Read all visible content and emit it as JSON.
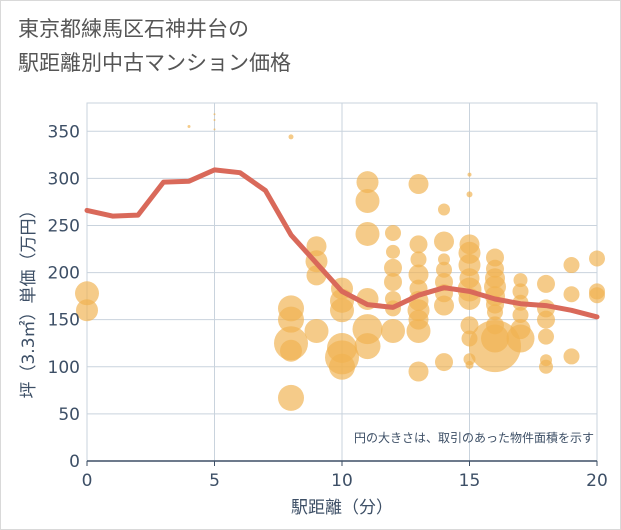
{
  "title": {
    "line1": "東京都練馬区石神井台の",
    "line2": "駅距離別中古マンション価格"
  },
  "colors": {
    "bubble": "#f0b251",
    "line": "#d9695a",
    "grid": "#c9d3dd",
    "axis": "#3d4f66"
  },
  "chart_data": {
    "type": "scatter",
    "xlabel": "駅距離（分）",
    "ylabel": "坪（3.3㎡）単価（万円）",
    "xlim": [
      0,
      20
    ],
    "ylim": [
      0,
      380
    ],
    "xticks": [
      0,
      5,
      10,
      15,
      20
    ],
    "yticks": [
      0,
      50,
      100,
      150,
      200,
      250,
      300,
      350
    ],
    "xtick_labels": [
      "0",
      "5",
      "10",
      "15",
      "20"
    ],
    "ytick_labels": [
      "0",
      "50",
      "100",
      "150",
      "200",
      "250",
      "300",
      "350"
    ],
    "grid": true,
    "annotation": "円の大きさは、取引のあった物件面積を示す",
    "series": [
      {
        "type": "bubble",
        "points": [
          {
            "x": 0,
            "y": 178,
            "s": 12
          },
          {
            "x": 0,
            "y": 160,
            "s": 11
          },
          {
            "x": 4,
            "y": 355,
            "s": 1.5
          },
          {
            "x": 5,
            "y": 368,
            "s": 1
          },
          {
            "x": 5,
            "y": 362,
            "s": 1
          },
          {
            "x": 5,
            "y": 352,
            "s": 1
          },
          {
            "x": 8,
            "y": 344,
            "s": 2.5
          },
          {
            "x": 8,
            "y": 162,
            "s": 13
          },
          {
            "x": 8,
            "y": 150,
            "s": 13
          },
          {
            "x": 8,
            "y": 125,
            "s": 17
          },
          {
            "x": 8,
            "y": 117,
            "s": 11
          },
          {
            "x": 8,
            "y": 67,
            "s": 13
          },
          {
            "x": 9,
            "y": 228,
            "s": 10
          },
          {
            "x": 9,
            "y": 212,
            "s": 11
          },
          {
            "x": 9,
            "y": 197,
            "s": 10
          },
          {
            "x": 9,
            "y": 138,
            "s": 12
          },
          {
            "x": 10,
            "y": 183,
            "s": 11
          },
          {
            "x": 10,
            "y": 170,
            "s": 12
          },
          {
            "x": 10,
            "y": 160,
            "s": 12
          },
          {
            "x": 10,
            "y": 120,
            "s": 15
          },
          {
            "x": 10,
            "y": 110,
            "s": 17
          },
          {
            "x": 10,
            "y": 100,
            "s": 13
          },
          {
            "x": 11,
            "y": 296,
            "s": 11
          },
          {
            "x": 11,
            "y": 276,
            "s": 12
          },
          {
            "x": 11,
            "y": 241,
            "s": 12
          },
          {
            "x": 11,
            "y": 172,
            "s": 11
          },
          {
            "x": 11,
            "y": 140,
            "s": 15
          },
          {
            "x": 11,
            "y": 122,
            "s": 13
          },
          {
            "x": 12,
            "y": 242,
            "s": 8
          },
          {
            "x": 12,
            "y": 222,
            "s": 7
          },
          {
            "x": 12,
            "y": 205,
            "s": 9
          },
          {
            "x": 12,
            "y": 190,
            "s": 9
          },
          {
            "x": 12,
            "y": 172,
            "s": 8
          },
          {
            "x": 12,
            "y": 162,
            "s": 8
          },
          {
            "x": 12,
            "y": 138,
            "s": 12
          },
          {
            "x": 13,
            "y": 294,
            "s": 10
          },
          {
            "x": 13,
            "y": 230,
            "s": 9
          },
          {
            "x": 13,
            "y": 214,
            "s": 8
          },
          {
            "x": 13,
            "y": 198,
            "s": 10
          },
          {
            "x": 13,
            "y": 183,
            "s": 9
          },
          {
            "x": 13,
            "y": 170,
            "s": 10
          },
          {
            "x": 13,
            "y": 160,
            "s": 11
          },
          {
            "x": 13,
            "y": 150,
            "s": 10
          },
          {
            "x": 13,
            "y": 138,
            "s": 12
          },
          {
            "x": 13,
            "y": 95,
            "s": 10
          },
          {
            "x": 14,
            "y": 267,
            "s": 6
          },
          {
            "x": 14,
            "y": 233,
            "s": 10
          },
          {
            "x": 14,
            "y": 214,
            "s": 6
          },
          {
            "x": 14,
            "y": 203,
            "s": 8
          },
          {
            "x": 14,
            "y": 190,
            "s": 9
          },
          {
            "x": 14,
            "y": 178,
            "s": 9
          },
          {
            "x": 14,
            "y": 165,
            "s": 10
          },
          {
            "x": 14,
            "y": 105,
            "s": 9
          },
          {
            "x": 15,
            "y": 304,
            "s": 2
          },
          {
            "x": 15,
            "y": 283,
            "s": 3
          },
          {
            "x": 15,
            "y": 230,
            "s": 10
          },
          {
            "x": 15,
            "y": 221,
            "s": 11
          },
          {
            "x": 15,
            "y": 208,
            "s": 11
          },
          {
            "x": 15,
            "y": 194,
            "s": 10
          },
          {
            "x": 15,
            "y": 182,
            "s": 12
          },
          {
            "x": 15,
            "y": 172,
            "s": 11
          },
          {
            "x": 15,
            "y": 144,
            "s": 9
          },
          {
            "x": 15,
            "y": 130,
            "s": 8
          },
          {
            "x": 15,
            "y": 108,
            "s": 6
          },
          {
            "x": 15,
            "y": 102,
            "s": 4
          },
          {
            "x": 16,
            "y": 216,
            "s": 9
          },
          {
            "x": 16,
            "y": 204,
            "s": 9
          },
          {
            "x": 16,
            "y": 194,
            "s": 10
          },
          {
            "x": 16,
            "y": 185,
            "s": 11
          },
          {
            "x": 16,
            "y": 175,
            "s": 10
          },
          {
            "x": 16,
            "y": 166,
            "s": 9
          },
          {
            "x": 16,
            "y": 158,
            "s": 8
          },
          {
            "x": 16,
            "y": 144,
            "s": 9
          },
          {
            "x": 16,
            "y": 130,
            "s": 14
          },
          {
            "x": 16,
            "y": 122,
            "s": 26
          },
          {
            "x": 17,
            "y": 192,
            "s": 7
          },
          {
            "x": 17,
            "y": 180,
            "s": 8
          },
          {
            "x": 17,
            "y": 168,
            "s": 8
          },
          {
            "x": 17,
            "y": 155,
            "s": 8
          },
          {
            "x": 17,
            "y": 140,
            "s": 10
          },
          {
            "x": 17,
            "y": 130,
            "s": 14
          },
          {
            "x": 18,
            "y": 188,
            "s": 9
          },
          {
            "x": 18,
            "y": 162,
            "s": 9
          },
          {
            "x": 18,
            "y": 150,
            "s": 9
          },
          {
            "x": 18,
            "y": 132,
            "s": 8
          },
          {
            "x": 18,
            "y": 107,
            "s": 6
          },
          {
            "x": 18,
            "y": 100,
            "s": 7
          },
          {
            "x": 19,
            "y": 208,
            "s": 8
          },
          {
            "x": 19,
            "y": 177,
            "s": 8
          },
          {
            "x": 19,
            "y": 111,
            "s": 8
          },
          {
            "x": 20,
            "y": 215,
            "s": 8
          },
          {
            "x": 20,
            "y": 180,
            "s": 8
          },
          {
            "x": 20,
            "y": 176,
            "s": 8
          }
        ]
      },
      {
        "type": "line",
        "points": [
          {
            "x": 0,
            "y": 266
          },
          {
            "x": 1,
            "y": 260
          },
          {
            "x": 2,
            "y": 261
          },
          {
            "x": 3,
            "y": 296
          },
          {
            "x": 4,
            "y": 297
          },
          {
            "x": 5,
            "y": 309
          },
          {
            "x": 6,
            "y": 306
          },
          {
            "x": 7,
            "y": 287
          },
          {
            "x": 8,
            "y": 240
          },
          {
            "x": 9,
            "y": 210
          },
          {
            "x": 10,
            "y": 180
          },
          {
            "x": 11,
            "y": 166
          },
          {
            "x": 12,
            "y": 163
          },
          {
            "x": 13,
            "y": 176
          },
          {
            "x": 14,
            "y": 184
          },
          {
            "x": 15,
            "y": 180
          },
          {
            "x": 16,
            "y": 172
          },
          {
            "x": 17,
            "y": 167
          },
          {
            "x": 18,
            "y": 165
          },
          {
            "x": 19,
            "y": 160
          },
          {
            "x": 20,
            "y": 153
          }
        ]
      }
    ]
  }
}
